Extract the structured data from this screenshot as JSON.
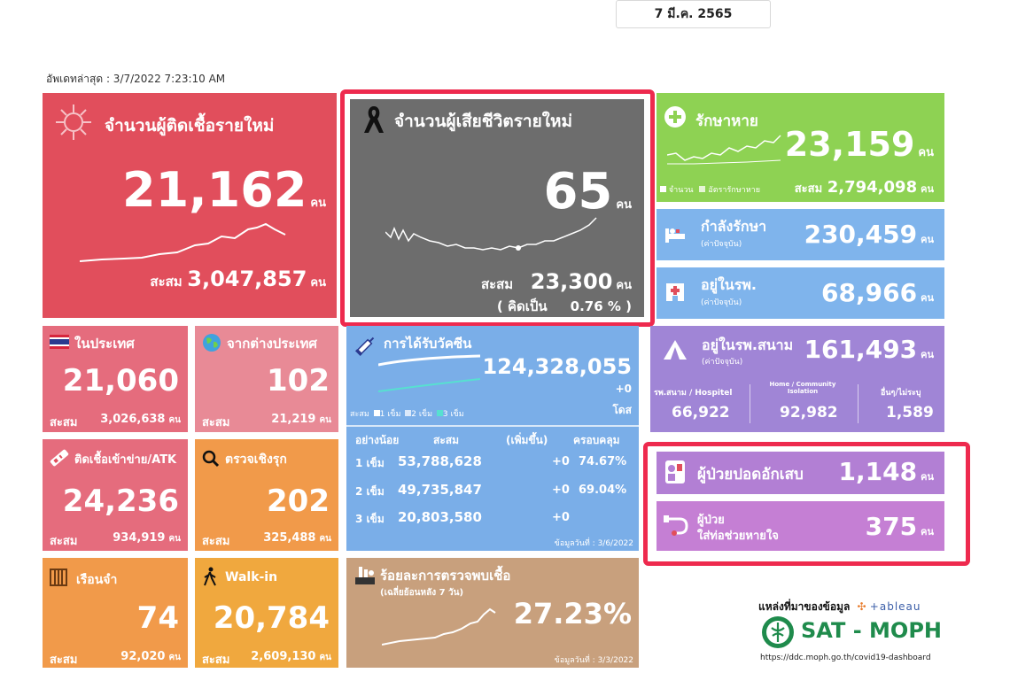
{
  "date_selector": "7 มี.ค. 2565",
  "updated": "อัพเดทล่าสุด : 3/7/2022 7:23:10 AM",
  "unit": "คน",
  "new_cases": {
    "title": "จำนวนผู้ติดเชื้อรายใหม่",
    "value": "21,162",
    "cum_label": "สะสม",
    "cum_value": "3,047,857"
  },
  "new_deaths": {
    "title": "จำนวนผู้เสียชีวิตรายใหม่",
    "value": "65",
    "cum_label": "สะสม",
    "cum_value": "23,300",
    "pct_text": "( คิดเป็น",
    "pct_value": "0.76 % )"
  },
  "recovered": {
    "title": "รักษาหาย",
    "value": "23,159",
    "legend_count": "จำนวน",
    "legend_rate": "อัตรารักษาหาย",
    "cum_label": "สะสม",
    "cum_value": "2,794,098"
  },
  "treating": {
    "title": "กำลังรักษา",
    "sub": "(ค่าปัจจุบัน)",
    "value": "230,459"
  },
  "hospital": {
    "title": "อยู่ในรพ.",
    "sub": "(ค่าปัจจุบัน)",
    "value": "68,966"
  },
  "field_hospital": {
    "title": "อยู่ในรพ.สนาม",
    "sub": "(ค่าปัจจุบัน)",
    "value": "161,493",
    "cols": [
      {
        "label": "รพ.สนาม / Hospitel",
        "value": "66,922"
      },
      {
        "label": "Home / Community Isolation",
        "value": "92,982"
      },
      {
        "label": "อื่นๆ/ไม่ระบุ",
        "value": "1,589"
      }
    ]
  },
  "pneumonia": {
    "title": "ผู้ป่วยปอดอักเสบ",
    "value": "1,148"
  },
  "ventilator": {
    "title1": "ผู้ป่วย",
    "title2": "ใส่ท่อช่วยหายใจ",
    "value": "375"
  },
  "domestic": {
    "title": "ในประเทศ",
    "value": "21,060",
    "cum_label": "สะสม",
    "cum_value": "3,026,638"
  },
  "abroad": {
    "title": "จากต่างประเทศ",
    "value": "102",
    "cum_label": "สะสม",
    "cum_value": "21,219"
  },
  "atk": {
    "title": "ติดเชื้อเข้าข่าย/ATK",
    "value": "24,236",
    "cum_label": "สะสม",
    "cum_value": "934,919"
  },
  "proactive": {
    "title": "ตรวจเชิงรุก",
    "value": "202",
    "cum_label": "สะสม",
    "cum_value": "325,488"
  },
  "prison": {
    "title": "เรือนจำ",
    "value": "74",
    "cum_label": "สะสม",
    "cum_value": "92,020"
  },
  "walkin": {
    "title": "Walk-in",
    "value": "20,784",
    "cum_label": "สะสม",
    "cum_value": "2,609,130"
  },
  "vaccine": {
    "title": "การได้รับวัคซีน",
    "total": "124,328,055",
    "plus": "+0",
    "unit": "โดส",
    "legend_cum": "สะสม",
    "legend_d1": "1 เข็ม",
    "legend_d2": "2 เข็ม",
    "legend_d3": "3 เข็ม",
    "headers": [
      "อย่างน้อย",
      "สะสม",
      "(เพิ่มขึ้น)",
      "ครอบคลุม"
    ],
    "rows": [
      {
        "dose": "1 เข็ม",
        "cum": "53,788,628",
        "inc": "+0",
        "cov": "74.67%"
      },
      {
        "dose": "2 เข็ม",
        "cum": "49,735,847",
        "inc": "+0",
        "cov": "69.04%"
      },
      {
        "dose": "3 เข็ม",
        "cum": "20,803,580",
        "inc": "+0",
        "cov": ""
      }
    ],
    "data_date": "ข้อมูลวันที่ : 3/6/2022"
  },
  "positivity": {
    "title": "ร้อยละการตรวจพบเชื้อ",
    "sub": "(เฉลี่ยย้อนหลัง 7 วัน)",
    "value": "27.23%",
    "data_date": "ข้อมูลวันที่ : 3/3/2022"
  },
  "source": {
    "label": "แหล่งที่มาของข้อมูล",
    "tableau": "+ableau",
    "org": "SAT - MOPH",
    "url": "https://ddc.moph.go.th/covid19-dashboard"
  },
  "colors": {
    "red": "#e14e5c",
    "dark": "#6d6d6d",
    "green": "#8ed253",
    "lightblue": "#7fb4ec",
    "pink": "#e56c7d",
    "orange": "#f19a4a",
    "tan": "#c8a07d",
    "blue": "#7aaee8",
    "purple": "#a085d6",
    "violet": "#b27fd4",
    "frame": "#ee2a4e"
  }
}
